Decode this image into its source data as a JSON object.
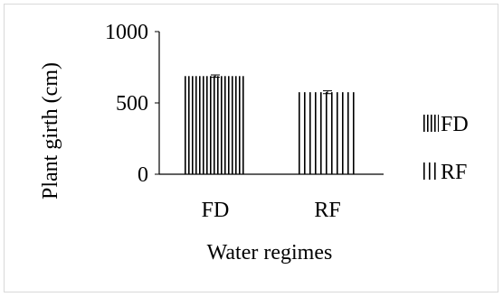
{
  "chart_data": {
    "type": "bar",
    "categories": [
      "FD",
      "RF"
    ],
    "series": [
      {
        "name": "FD",
        "values": [
          688,
          null
        ],
        "errors": [
          8,
          null
        ],
        "pattern": "dense-vertical-stripes"
      },
      {
        "name": "RF",
        "values": [
          null,
          575
        ],
        "errors": [
          null,
          10
        ],
        "pattern": "sparse-vertical-stripes"
      }
    ],
    "xlabel": "Water regimes",
    "ylabel": "Plant girth (cm)",
    "ylim": [
      0,
      1000
    ],
    "yticks": [
      0,
      500,
      1000
    ],
    "grid": false,
    "legend_position": "right",
    "colors": {
      "bar_stroke": "#000000",
      "axis": "#000000",
      "border": "#d9d9d9"
    }
  }
}
